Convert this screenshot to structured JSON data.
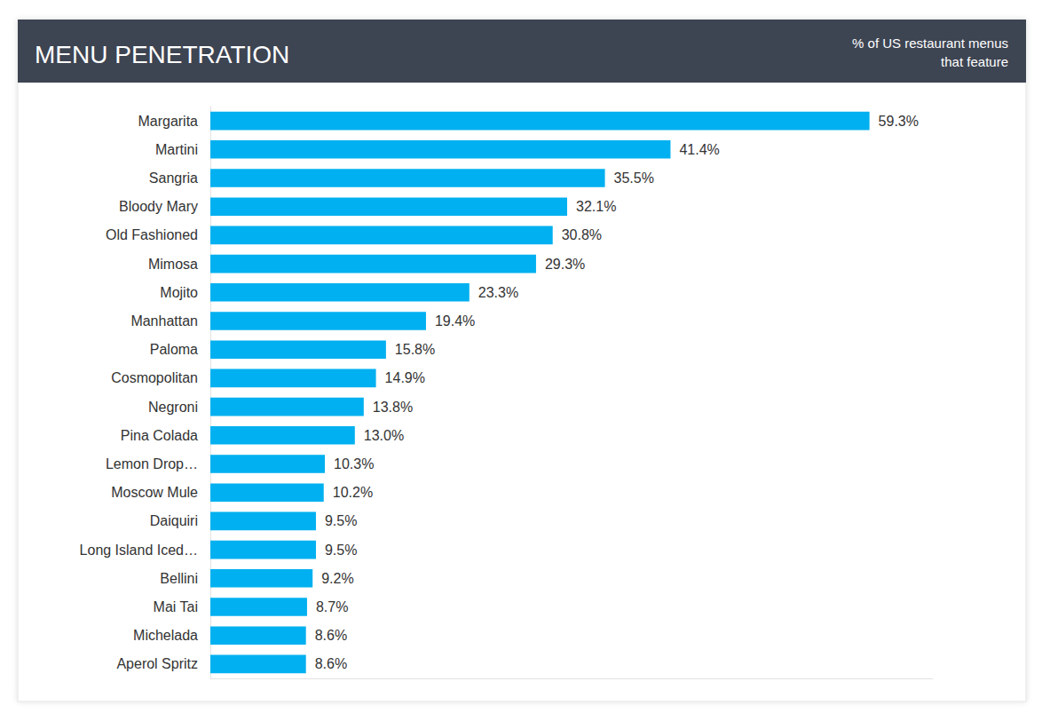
{
  "chart_data": {
    "type": "bar",
    "title": "MENU PENETRATION",
    "subtitle": "% of US restaurant menus\nthat feature",
    "orientation": "horizontal",
    "categories": [
      "Margarita",
      "Martini",
      "Sangria",
      "Bloody Mary",
      "Old Fashioned",
      "Mimosa",
      "Mojito",
      "Manhattan",
      "Paloma",
      "Cosmopolitan",
      "Negroni",
      "Pina Colada",
      "Lemon Drop…",
      "Moscow Mule",
      "Daiquiri",
      "Long Island Iced…",
      "Bellini",
      "Mai Tai",
      "Michelada",
      "Aperol Spritz"
    ],
    "values": [
      59.3,
      41.4,
      35.5,
      32.1,
      30.8,
      29.3,
      23.3,
      19.4,
      15.8,
      14.9,
      13.8,
      13.0,
      10.3,
      10.2,
      9.5,
      9.5,
      9.2,
      8.7,
      8.6,
      8.6
    ],
    "value_labels": [
      "59.3%",
      "41.4%",
      "35.5%",
      "32.1%",
      "30.8%",
      "29.3%",
      "23.3%",
      "19.4%",
      "15.8%",
      "14.9%",
      "13.8%",
      "13.0%",
      "10.3%",
      "10.2%",
      "9.5%",
      "9.5%",
      "9.2%",
      "8.7%",
      "8.6%",
      "8.6%"
    ],
    "color": "#00b0f0",
    "xlim": [
      0,
      65
    ],
    "grid": false,
    "data_labels": true,
    "tick_labels": "y"
  }
}
